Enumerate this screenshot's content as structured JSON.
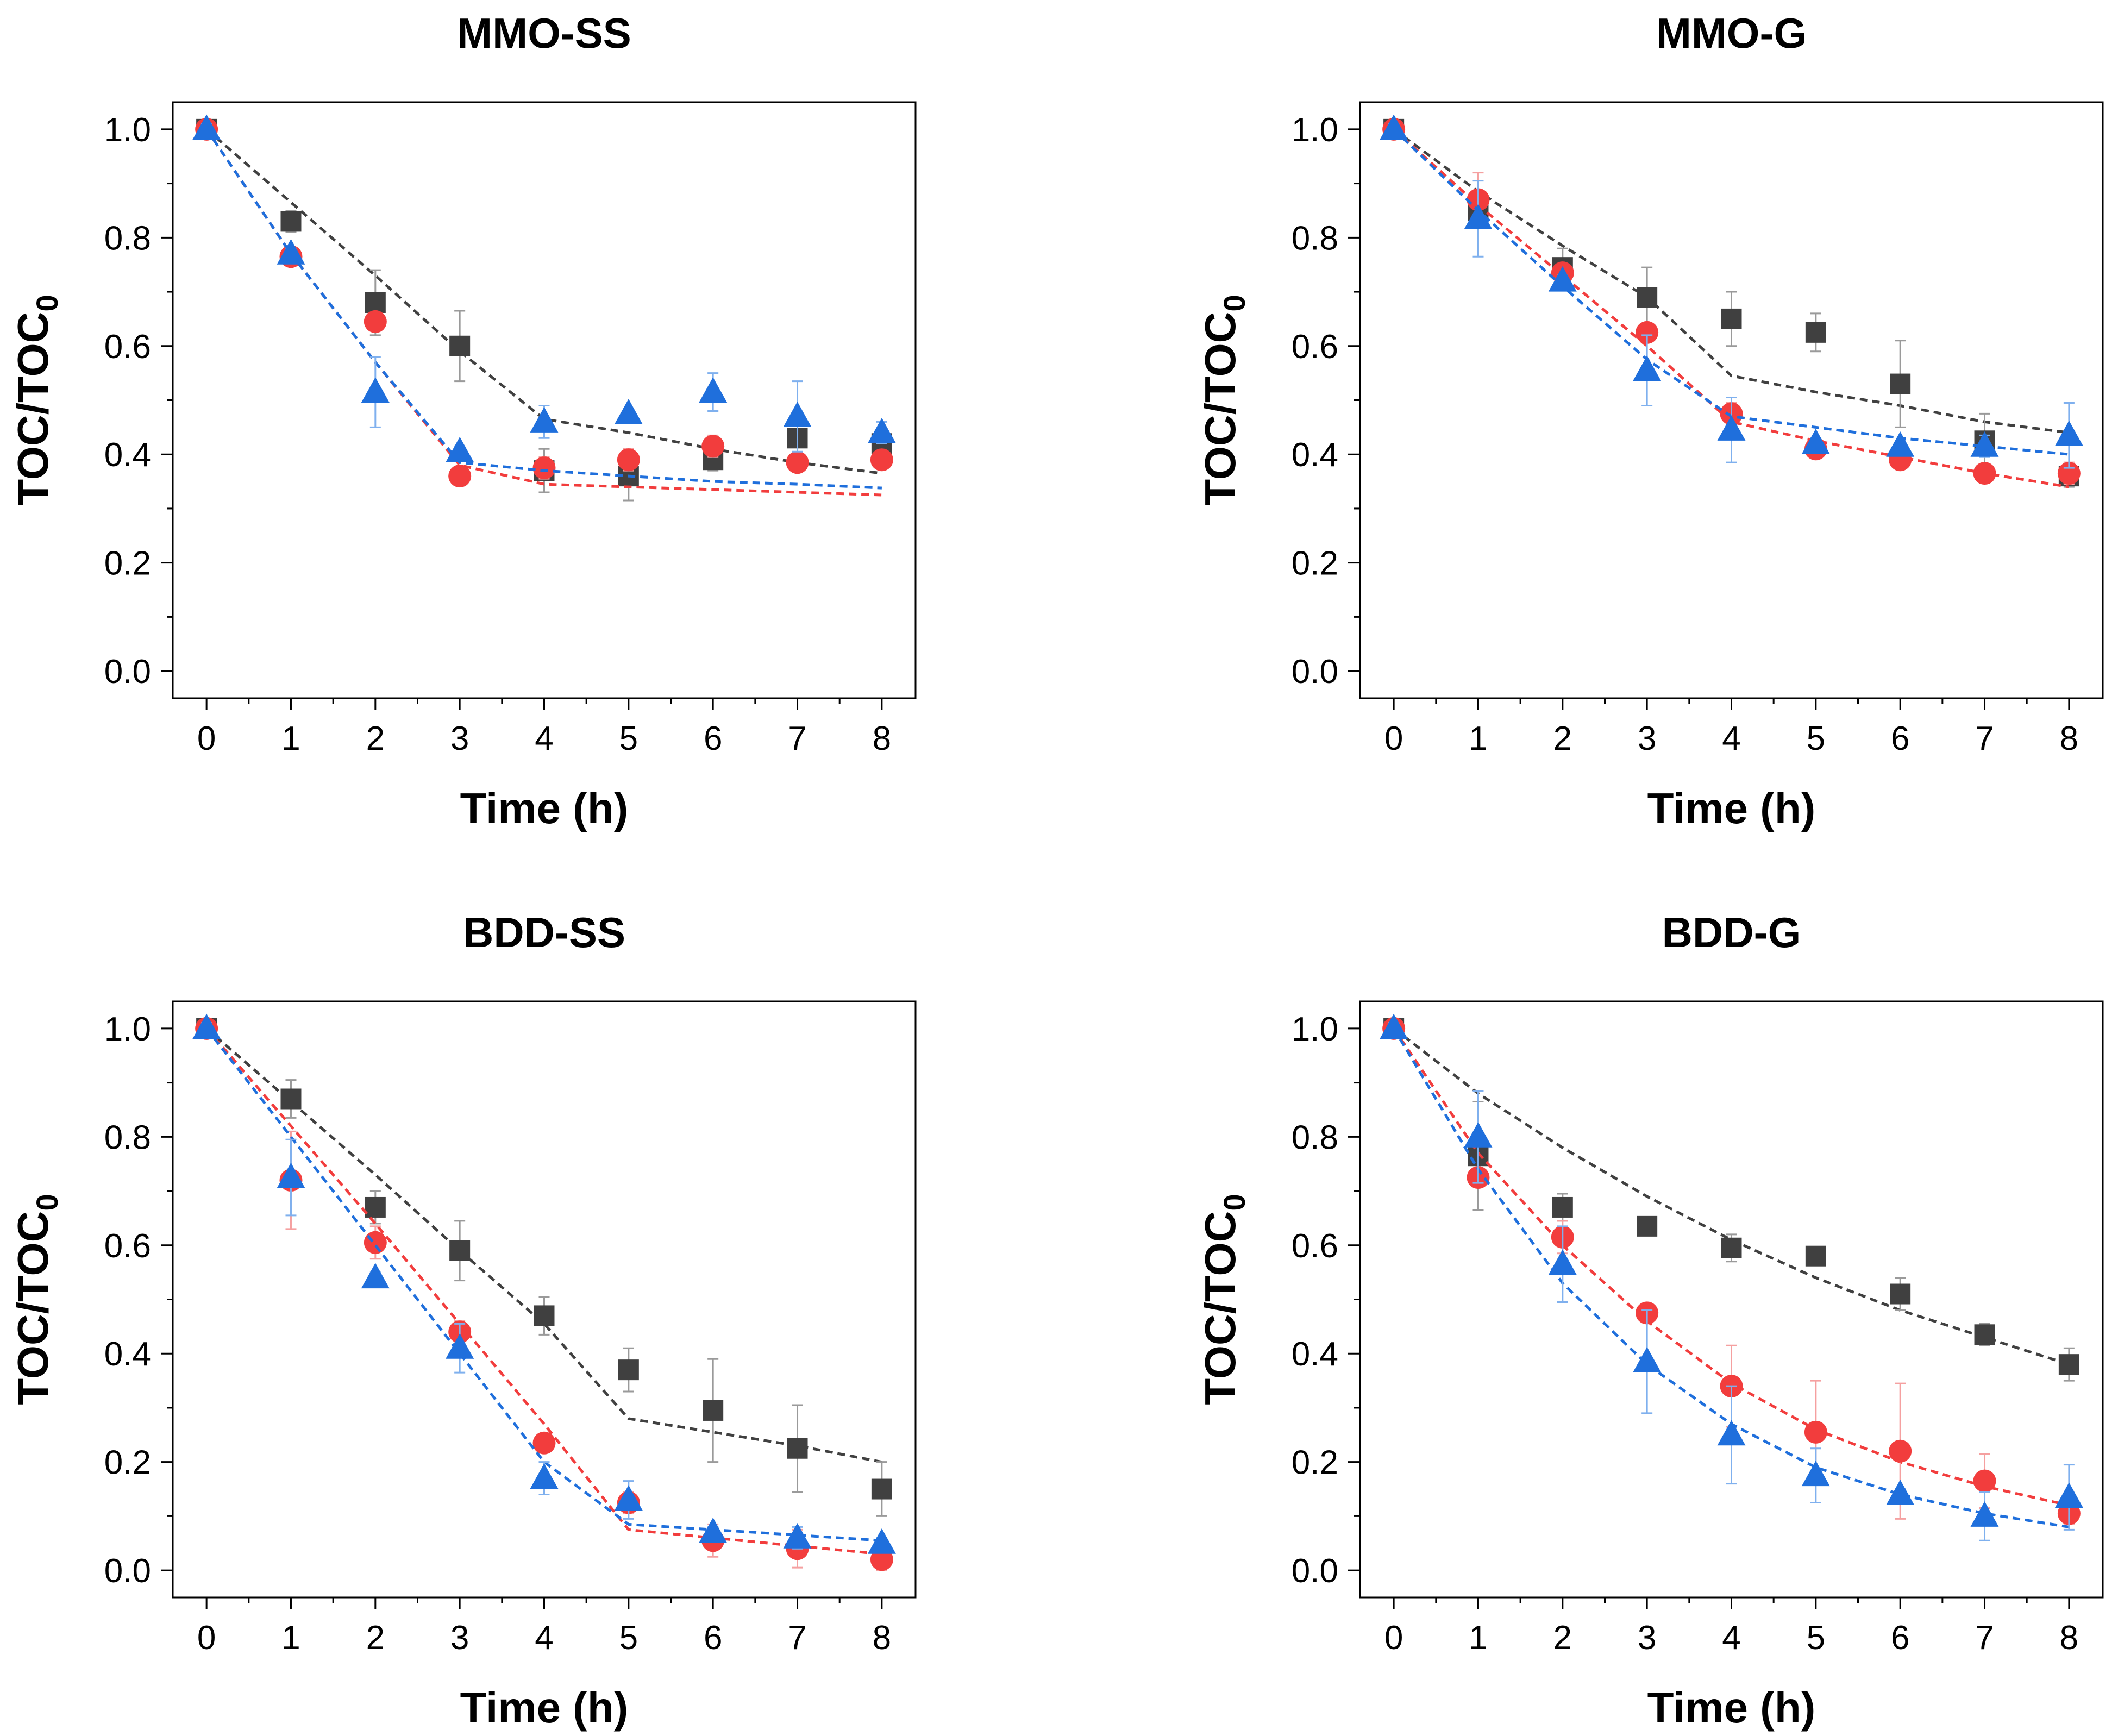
{
  "chart_data": [
    {
      "type": "scatter",
      "title": "MMO-SS",
      "xlabel": "Time (h)",
      "ylabel": "TOC/TOC",
      "ylabel_subscript": "0",
      "xlim": [
        -0.4,
        8.4
      ],
      "ylim": [
        -0.05,
        1.05
      ],
      "xticks": [
        0,
        1,
        2,
        3,
        4,
        5,
        6,
        7,
        8
      ],
      "yticks": [
        0.0,
        0.2,
        0.4,
        0.6,
        0.8,
        1.0
      ],
      "xtick_labels": [
        "0",
        "1",
        "2",
        "3",
        "4",
        "5",
        "6",
        "7",
        "8"
      ],
      "ytick_labels": [
        "0.0",
        "0.2",
        "0.4",
        "0.6",
        "0.8",
        "1.0"
      ],
      "series": [
        {
          "name": "black-square",
          "marker": "square",
          "color": "#404040",
          "x": [
            0,
            1,
            2,
            3,
            4,
            5,
            6,
            7,
            8
          ],
          "y": [
            1.0,
            0.83,
            0.68,
            0.6,
            0.37,
            0.36,
            0.39,
            0.43,
            0.42
          ],
          "err": [
            0.01,
            0.02,
            0.06,
            0.065,
            0.04,
            0.045,
            0.02,
            0.03,
            0.02
          ],
          "fit_x": [
            0,
            1,
            2,
            3,
            4,
            5,
            6,
            7,
            8
          ],
          "fit_y": [
            1.0,
            0.865,
            0.73,
            0.59,
            0.465,
            0.44,
            0.41,
            0.385,
            0.365
          ]
        },
        {
          "name": "red-circle",
          "marker": "circle",
          "color": "#f23d3d",
          "x": [
            0,
            1,
            2,
            3,
            4,
            5,
            6,
            7,
            8
          ],
          "y": [
            1.0,
            0.765,
            0.645,
            0.36,
            0.375,
            0.39,
            0.415,
            0.385,
            0.39
          ],
          "err": [
            0.01,
            0.01,
            0.01,
            0.01,
            0.02,
            0.02,
            0.02,
            0.01,
            0.01
          ],
          "fit_x": [
            0,
            1,
            2,
            3,
            4,
            5,
            6,
            7,
            8
          ],
          "fit_y": [
            1.0,
            0.77,
            0.57,
            0.38,
            0.345,
            0.34,
            0.335,
            0.33,
            0.325
          ]
        },
        {
          "name": "blue-triangle",
          "marker": "triangle",
          "color": "#1f6fdc",
          "x": [
            0,
            1,
            2,
            3,
            4,
            5,
            6,
            7,
            8
          ],
          "y": [
            1.0,
            0.77,
            0.515,
            0.405,
            0.46,
            0.475,
            0.515,
            0.47,
            0.44
          ],
          "err": [
            0.01,
            0.01,
            0.065,
            0.01,
            0.03,
            0.01,
            0.035,
            0.065,
            0.02
          ],
          "fit_x": [
            0,
            1,
            2,
            3,
            4,
            5,
            6,
            7,
            8
          ],
          "fit_y": [
            1.0,
            0.77,
            0.57,
            0.385,
            0.37,
            0.36,
            0.35,
            0.345,
            0.338
          ]
        }
      ]
    },
    {
      "type": "scatter",
      "title": "MMO-G",
      "xlabel": "Time (h)",
      "ylabel": "TOC/TOC",
      "ylabel_subscript": "0",
      "xlim": [
        -0.4,
        8.4
      ],
      "ylim": [
        -0.05,
        1.05
      ],
      "xticks": [
        0,
        1,
        2,
        3,
        4,
        5,
        6,
        7,
        8
      ],
      "yticks": [
        0.0,
        0.2,
        0.4,
        0.6,
        0.8,
        1.0
      ],
      "xtick_labels": [
        "0",
        "1",
        "2",
        "3",
        "4",
        "5",
        "6",
        "7",
        "8"
      ],
      "ytick_labels": [
        "0.0",
        "0.2",
        "0.4",
        "0.6",
        "0.8",
        "1.0"
      ],
      "series": [
        {
          "name": "black-square",
          "marker": "square",
          "color": "#404040",
          "x": [
            0,
            1,
            2,
            3,
            4,
            5,
            6,
            7,
            8
          ],
          "y": [
            1.0,
            0.85,
            0.745,
            0.69,
            0.65,
            0.625,
            0.53,
            0.425,
            0.36
          ],
          "err": [
            0.01,
            0.03,
            0.035,
            0.055,
            0.05,
            0.035,
            0.08,
            0.05,
            0.02
          ],
          "fit_x": [
            0,
            1,
            2,
            3,
            4,
            5,
            6,
            7,
            8
          ],
          "fit_y": [
            1.0,
            0.885,
            0.785,
            0.69,
            0.545,
            0.515,
            0.49,
            0.46,
            0.44
          ]
        },
        {
          "name": "red-circle",
          "marker": "circle",
          "color": "#f23d3d",
          "x": [
            0,
            1,
            2,
            3,
            4,
            5,
            6,
            7,
            8
          ],
          "y": [
            1.0,
            0.87,
            0.735,
            0.625,
            0.475,
            0.41,
            0.39,
            0.365,
            0.365
          ],
          "err": [
            0.01,
            0.05,
            0.01,
            0.01,
            0.02,
            0.01,
            0.01,
            0.01,
            0.02
          ],
          "fit_x": [
            0,
            1,
            2,
            3,
            4,
            5,
            6,
            7,
            8
          ],
          "fit_y": [
            1.0,
            0.86,
            0.73,
            0.6,
            0.46,
            0.425,
            0.395,
            0.365,
            0.34
          ]
        },
        {
          "name": "blue-triangle",
          "marker": "triangle",
          "color": "#1f6fdc",
          "x": [
            0,
            1,
            2,
            3,
            4,
            5,
            6,
            7,
            8
          ],
          "y": [
            1.0,
            0.835,
            0.72,
            0.555,
            0.445,
            0.42,
            0.415,
            0.415,
            0.435
          ],
          "err": [
            0.01,
            0.07,
            0.01,
            0.065,
            0.06,
            0.01,
            0.01,
            0.02,
            0.06
          ],
          "fit_x": [
            0,
            1,
            2,
            3,
            4,
            5,
            6,
            7,
            8
          ],
          "fit_y": [
            1.0,
            0.85,
            0.71,
            0.575,
            0.47,
            0.45,
            0.43,
            0.415,
            0.4
          ]
        }
      ]
    },
    {
      "type": "scatter",
      "title": "BDD-SS",
      "xlabel": "Time (h)",
      "ylabel": "TOC/TOC",
      "ylabel_subscript": "0",
      "xlim": [
        -0.4,
        8.4
      ],
      "ylim": [
        -0.05,
        1.05
      ],
      "xticks": [
        0,
        1,
        2,
        3,
        4,
        5,
        6,
        7,
        8
      ],
      "yticks": [
        0.0,
        0.2,
        0.4,
        0.6,
        0.8,
        1.0
      ],
      "xtick_labels": [
        "0",
        "1",
        "2",
        "3",
        "4",
        "5",
        "6",
        "7",
        "8"
      ],
      "ytick_labels": [
        "0.0",
        "0.2",
        "0.4",
        "0.6",
        "0.8",
        "1.0"
      ],
      "series": [
        {
          "name": "black-square",
          "marker": "square",
          "color": "#404040",
          "x": [
            0,
            1,
            2,
            3,
            4,
            5,
            6,
            7,
            8
          ],
          "y": [
            1.0,
            0.87,
            0.67,
            0.59,
            0.47,
            0.37,
            0.295,
            0.225,
            0.15
          ],
          "err": [
            0.01,
            0.035,
            0.03,
            0.055,
            0.035,
            0.04,
            0.095,
            0.08,
            0.05
          ],
          "fit_x": [
            0,
            1,
            2,
            3,
            4,
            5,
            6,
            7,
            8
          ],
          "fit_y": [
            1.0,
            0.865,
            0.73,
            0.59,
            0.455,
            0.28,
            0.255,
            0.23,
            0.2
          ]
        },
        {
          "name": "red-circle",
          "marker": "circle",
          "color": "#f23d3d",
          "x": [
            0,
            1,
            2,
            3,
            4,
            5,
            6,
            7,
            8
          ],
          "y": [
            1.0,
            0.72,
            0.605,
            0.44,
            0.235,
            0.125,
            0.055,
            0.04,
            0.02
          ],
          "err": [
            0.01,
            0.09,
            0.03,
            0.02,
            0.01,
            0.02,
            0.03,
            0.035,
            0.02
          ],
          "fit_x": [
            0,
            1,
            2,
            3,
            4,
            5,
            6,
            7,
            8
          ],
          "fit_y": [
            1.0,
            0.82,
            0.64,
            0.455,
            0.27,
            0.075,
            0.06,
            0.045,
            0.03
          ]
        },
        {
          "name": "blue-triangle",
          "marker": "triangle",
          "color": "#1f6fdc",
          "x": [
            0,
            1,
            2,
            3,
            4,
            5,
            6,
            7,
            8
          ],
          "y": [
            1.0,
            0.725,
            0.54,
            0.41,
            0.17,
            0.13,
            0.07,
            0.06,
            0.05
          ],
          "err": [
            0.01,
            0.07,
            0.01,
            0.045,
            0.03,
            0.035,
            0.01,
            0.02,
            0.01
          ],
          "fit_x": [
            0,
            1,
            2,
            3,
            4,
            5,
            6,
            7,
            8
          ],
          "fit_y": [
            1.0,
            0.8,
            0.6,
            0.4,
            0.2,
            0.085,
            0.075,
            0.065,
            0.055
          ]
        }
      ]
    },
    {
      "type": "scatter",
      "title": "BDD-G",
      "xlabel": "Time (h)",
      "ylabel": "TOC/TOC",
      "ylabel_subscript": "0",
      "xlim": [
        -0.4,
        8.4
      ],
      "ylim": [
        -0.05,
        1.05
      ],
      "xticks": [
        0,
        1,
        2,
        3,
        4,
        5,
        6,
        7,
        8
      ],
      "yticks": [
        0.0,
        0.2,
        0.4,
        0.6,
        0.8,
        1.0
      ],
      "xtick_labels": [
        "0",
        "1",
        "2",
        "3",
        "4",
        "5",
        "6",
        "7",
        "8"
      ],
      "ytick_labels": [
        "0.0",
        "0.2",
        "0.4",
        "0.6",
        "0.8",
        "1.0"
      ],
      "series": [
        {
          "name": "black-square",
          "marker": "square",
          "color": "#404040",
          "x": [
            0,
            1,
            2,
            3,
            4,
            5,
            6,
            7,
            8
          ],
          "y": [
            1.0,
            0.765,
            0.67,
            0.635,
            0.595,
            0.58,
            0.51,
            0.435,
            0.38
          ],
          "err": [
            0.01,
            0.1,
            0.025,
            0.01,
            0.025,
            0.01,
            0.03,
            0.02,
            0.03
          ],
          "fit_x": [
            0,
            1,
            2,
            3,
            4,
            5,
            6,
            7,
            8
          ],
          "fit_y": [
            1.0,
            0.88,
            0.78,
            0.69,
            0.61,
            0.54,
            0.48,
            0.43,
            0.38
          ]
        },
        {
          "name": "red-circle",
          "marker": "circle",
          "color": "#f23d3d",
          "x": [
            0,
            1,
            2,
            3,
            4,
            5,
            6,
            7,
            8
          ],
          "y": [
            1.0,
            0.725,
            0.615,
            0.475,
            0.34,
            0.255,
            0.22,
            0.165,
            0.105
          ],
          "err": [
            0.01,
            0.01,
            0.03,
            0.01,
            0.075,
            0.095,
            0.125,
            0.05,
            0.02
          ],
          "fit_x": [
            0,
            1,
            2,
            3,
            4,
            5,
            6,
            7,
            8
          ],
          "fit_y": [
            1.0,
            0.77,
            0.6,
            0.46,
            0.345,
            0.26,
            0.2,
            0.155,
            0.12
          ]
        },
        {
          "name": "blue-triangle",
          "marker": "triangle",
          "color": "#1f6fdc",
          "x": [
            0,
            1,
            2,
            3,
            4,
            5,
            6,
            7,
            8
          ],
          "y": [
            1.0,
            0.8,
            0.565,
            0.385,
            0.25,
            0.175,
            0.14,
            0.1,
            0.135
          ],
          "err": [
            0.01,
            0.085,
            0.07,
            0.095,
            0.09,
            0.05,
            0.01,
            0.045,
            0.06
          ],
          "fit_x": [
            0,
            1,
            2,
            3,
            4,
            5,
            6,
            7,
            8
          ],
          "fit_y": [
            1.0,
            0.74,
            0.53,
            0.38,
            0.27,
            0.19,
            0.14,
            0.105,
            0.08
          ]
        }
      ]
    }
  ]
}
